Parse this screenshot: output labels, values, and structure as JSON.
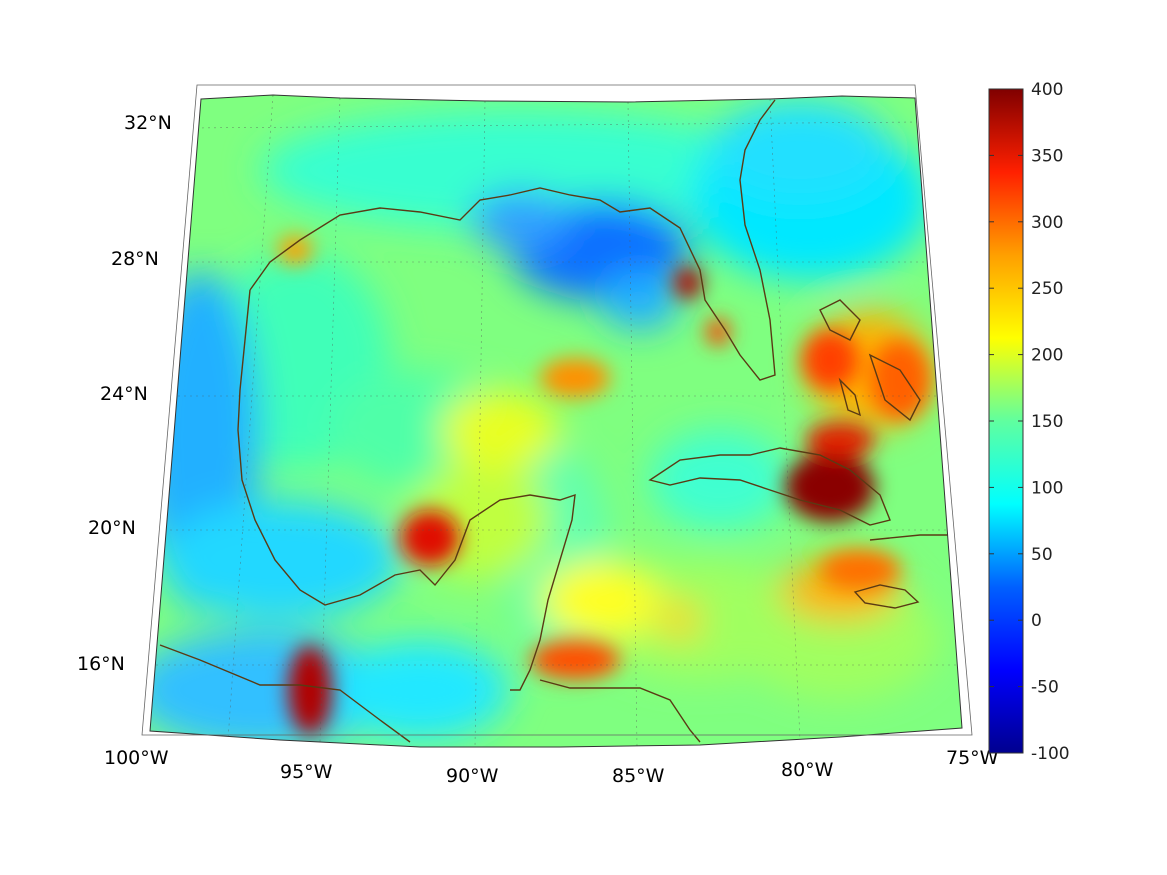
{
  "map": {
    "projection": "conic",
    "extent": {
      "lon": [
        -100,
        -75
      ],
      "lat": [
        14,
        33
      ]
    },
    "lat_labels": [
      "32°N",
      "28°N",
      "24°N",
      "20°N",
      "16°N"
    ],
    "lon_labels": [
      "100°W",
      "95°W",
      "90°W",
      "85°W",
      "80°W",
      "75°W"
    ],
    "coastline_color": "#5a3a14",
    "grid": "dotted"
  },
  "colorbar": {
    "colormap": "jet",
    "min": -100,
    "max": 400,
    "ticks": [
      "400",
      "350",
      "300",
      "250",
      "200",
      "150",
      "100",
      "50",
      "0",
      "-50",
      "-100"
    ]
  },
  "field": {
    "background_value": 150,
    "hotspots": [
      {
        "name": "Bay of Campeche west",
        "lon": -95.2,
        "lat": 15.6,
        "value": 400
      },
      {
        "name": "Yucatan northwest",
        "lon": -90.8,
        "lat": 20.1,
        "value": 390
      },
      {
        "name": "Tampa Bay",
        "lon": -82.7,
        "lat": 27.6,
        "value": 390
      },
      {
        "name": "Central Cuba",
        "lon": -79.5,
        "lat": 21.5,
        "value": 400
      },
      {
        "name": "Bahamas",
        "lon": -78.8,
        "lat": 25.5,
        "value": 300
      },
      {
        "name": "Honduras Gulf",
        "lon": -87.0,
        "lat": 16.0,
        "value": 300
      },
      {
        "name": "Central Gulf",
        "lon": -88.0,
        "lat": 24.8,
        "value": 260
      },
      {
        "name": "NE Gulf low",
        "lon": -85.5,
        "lat": 28.5,
        "value": 30
      },
      {
        "name": "Mexico west low",
        "lon": -99.5,
        "lat": 22,
        "value": 60
      }
    ]
  }
}
